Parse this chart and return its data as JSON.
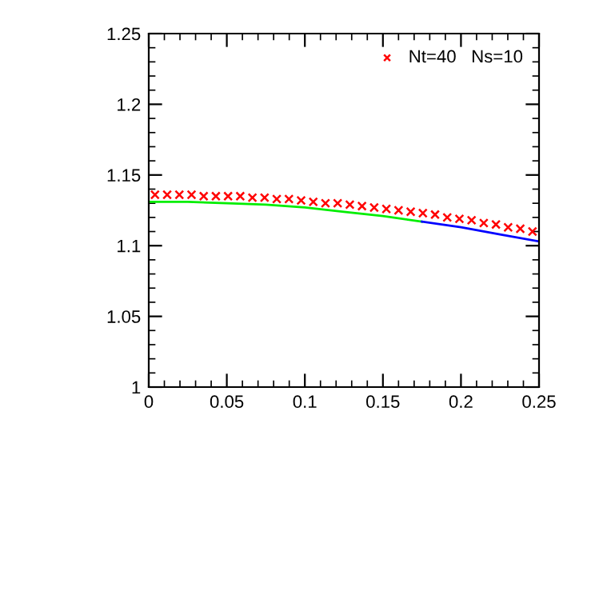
{
  "chart_data": {
    "type": "line",
    "xlim": [
      0,
      0.25
    ],
    "ylim": [
      1,
      1.25
    ],
    "xticks": [
      0,
      0.05,
      0.1,
      0.15,
      0.2,
      0.25
    ],
    "yticks": [
      1,
      1.05,
      1.1,
      1.15,
      1.2,
      1.25
    ],
    "grid": false,
    "legend": "top right",
    "series": [
      {
        "name": "Nt=40   Ns=10",
        "type": "scatter",
        "marker": "cross",
        "color": "#ff0000",
        "x": [
          0.004,
          0.0118,
          0.0196,
          0.0274,
          0.0352,
          0.043,
          0.0508,
          0.0586,
          0.0664,
          0.0742,
          0.082,
          0.0898,
          0.0976,
          0.1054,
          0.1132,
          0.121,
          0.1288,
          0.1366,
          0.1444,
          0.1522,
          0.16,
          0.1678,
          0.1756,
          0.1834,
          0.1912,
          0.199,
          0.2068,
          0.2146,
          0.2224,
          0.2302,
          0.238,
          0.2458
        ],
        "values": [
          1.136,
          1.136,
          1.136,
          1.136,
          1.135,
          1.135,
          1.135,
          1.135,
          1.134,
          1.134,
          1.133,
          1.133,
          1.132,
          1.131,
          1.13,
          1.13,
          1.129,
          1.128,
          1.127,
          1.126,
          1.125,
          1.124,
          1.123,
          1.122,
          1.12,
          1.119,
          1.118,
          1.116,
          1.115,
          1.113,
          1.112,
          1.11
        ]
      },
      {
        "color": "#00ee00",
        "x": [
          0,
          0.025,
          0.05,
          0.075,
          0.1,
          0.125,
          0.15,
          0.175
        ],
        "values": [
          1.131,
          1.131,
          1.13,
          1.129,
          1.127,
          1.124,
          1.121,
          1.117
        ]
      },
      {
        "color": "#0000ff",
        "x": [
          0.175,
          0.2,
          0.225,
          0.25
        ],
        "values": [
          1.117,
          1.113,
          1.108,
          1.103
        ]
      }
    ]
  }
}
